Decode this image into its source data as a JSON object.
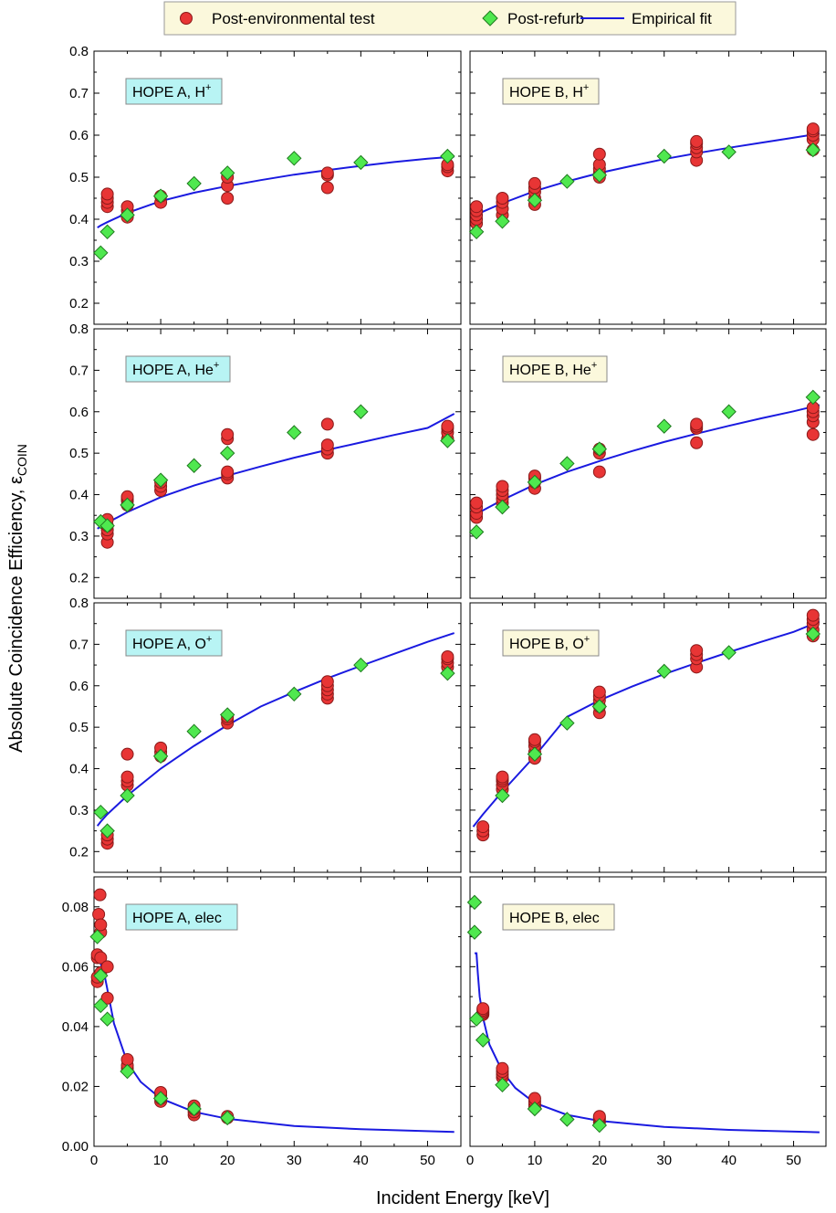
{
  "legend": {
    "items": [
      {
        "label": "Post-environmental test",
        "marker": "circle"
      },
      {
        "label": "Post-refurb",
        "marker": "diamond"
      },
      {
        "label": "Empirical fit",
        "marker": "line"
      }
    ]
  },
  "colors": {
    "post_env": "#e83535",
    "post_env_edge": "#8a1a1a",
    "post_refurb": "#4fe84f",
    "post_refurb_edge": "#1f7a1f",
    "fit": "#1a1ae0",
    "label_a_bg": "#b8f4f4",
    "label_b_bg": "#fbf8dc"
  },
  "axes": {
    "xlabel": "Incident Energy [keV]",
    "ylabel_main": "Absolute Coincidence Efficiency, ",
    "ylabel_symbol": "ε",
    "ylabel_sub": "COIN",
    "x_ticks": [
      "0",
      "10",
      "20",
      "30",
      "40",
      "50"
    ],
    "ion_y_ticks": [
      "0.2",
      "0.3",
      "0.4",
      "0.5",
      "0.6",
      "0.7",
      "0.8"
    ],
    "elec_y_ticks": [
      "0.00",
      "0.02",
      "0.04",
      "0.06",
      "0.08"
    ]
  },
  "chart_data": [
    {
      "type": "scatter",
      "label": "HOPE A, H",
      "label_sup": "+",
      "xlim": [
        0,
        55
      ],
      "ylim": [
        0.15,
        0.8
      ],
      "post_environmental": [
        [
          2,
          0.43
        ],
        [
          2,
          0.44
        ],
        [
          2,
          0.45
        ],
        [
          2,
          0.46
        ],
        [
          5,
          0.405
        ],
        [
          5,
          0.42
        ],
        [
          5,
          0.43
        ],
        [
          10,
          0.44
        ],
        [
          10,
          0.455
        ],
        [
          20,
          0.45
        ],
        [
          20,
          0.48
        ],
        [
          20,
          0.5
        ],
        [
          35,
          0.475
        ],
        [
          35,
          0.505
        ],
        [
          35,
          0.51
        ],
        [
          53,
          0.515
        ],
        [
          53,
          0.525
        ],
        [
          53,
          0.53
        ]
      ],
      "post_refurb": [
        [
          1,
          0.32
        ],
        [
          2,
          0.37
        ],
        [
          5,
          0.41
        ],
        [
          10,
          0.455
        ],
        [
          15,
          0.485
        ],
        [
          20,
          0.51
        ],
        [
          30,
          0.545
        ],
        [
          40,
          0.535
        ],
        [
          53,
          0.55
        ]
      ],
      "fit": {
        "x": [
          0.5,
          1,
          2,
          5,
          10,
          15,
          20,
          25,
          30,
          35,
          40,
          45,
          50,
          54
        ],
        "y": [
          0.38,
          0.385,
          0.393,
          0.415,
          0.443,
          0.463,
          0.479,
          0.493,
          0.506,
          0.517,
          0.527,
          0.536,
          0.544,
          0.549
        ]
      }
    },
    {
      "type": "scatter",
      "label": "HOPE B, H",
      "label_sup": "+",
      "xlim": [
        0,
        55
      ],
      "ylim": [
        0.15,
        0.8
      ],
      "post_environmental": [
        [
          1,
          0.39
        ],
        [
          1,
          0.4
        ],
        [
          1,
          0.41
        ],
        [
          1,
          0.42
        ],
        [
          1,
          0.43
        ],
        [
          5,
          0.41
        ],
        [
          5,
          0.425
        ],
        [
          5,
          0.44
        ],
        [
          5,
          0.45
        ],
        [
          10,
          0.435
        ],
        [
          10,
          0.45
        ],
        [
          10,
          0.465
        ],
        [
          10,
          0.475
        ],
        [
          10,
          0.485
        ],
        [
          20,
          0.5
        ],
        [
          20,
          0.51
        ],
        [
          20,
          0.52
        ],
        [
          20,
          0.53
        ],
        [
          20,
          0.555
        ],
        [
          35,
          0.54
        ],
        [
          35,
          0.56
        ],
        [
          35,
          0.57
        ],
        [
          35,
          0.58
        ],
        [
          35,
          0.585
        ],
        [
          53,
          0.565
        ],
        [
          53,
          0.59
        ],
        [
          53,
          0.6
        ],
        [
          53,
          0.61
        ],
        [
          53,
          0.615
        ]
      ],
      "post_refurb": [
        [
          1,
          0.37
        ],
        [
          5,
          0.395
        ],
        [
          10,
          0.445
        ],
        [
          15,
          0.49
        ],
        [
          20,
          0.505
        ],
        [
          30,
          0.55
        ],
        [
          40,
          0.56
        ],
        [
          53,
          0.565
        ]
      ],
      "fit": {
        "x": [
          0.5,
          1,
          2,
          5,
          10,
          15,
          20,
          25,
          30,
          35,
          40,
          45,
          50,
          54
        ],
        "y": [
          0.405,
          0.41,
          0.418,
          0.438,
          0.467,
          0.49,
          0.51,
          0.527,
          0.543,
          0.557,
          0.57,
          0.582,
          0.594,
          0.604
        ]
      }
    },
    {
      "type": "scatter",
      "label": "HOPE A, He",
      "label_sup": "+",
      "xlim": [
        0,
        55
      ],
      "ylim": [
        0.15,
        0.8
      ],
      "post_environmental": [
        [
          2,
          0.285
        ],
        [
          2,
          0.305
        ],
        [
          2,
          0.315
        ],
        [
          2,
          0.325
        ],
        [
          2,
          0.34
        ],
        [
          5,
          0.375
        ],
        [
          5,
          0.385
        ],
        [
          5,
          0.39
        ],
        [
          5,
          0.395
        ],
        [
          10,
          0.41
        ],
        [
          10,
          0.42
        ],
        [
          10,
          0.43
        ],
        [
          20,
          0.44
        ],
        [
          20,
          0.45
        ],
        [
          20,
          0.455
        ],
        [
          20,
          0.535
        ],
        [
          20,
          0.545
        ],
        [
          35,
          0.5
        ],
        [
          35,
          0.51
        ],
        [
          35,
          0.52
        ],
        [
          35,
          0.57
        ],
        [
          53,
          0.535
        ],
        [
          53,
          0.55
        ],
        [
          53,
          0.56
        ],
        [
          53,
          0.565
        ]
      ],
      "post_refurb": [
        [
          1,
          0.335
        ],
        [
          2,
          0.325
        ],
        [
          5,
          0.375
        ],
        [
          10,
          0.435
        ],
        [
          15,
          0.47
        ],
        [
          20,
          0.5
        ],
        [
          30,
          0.55
        ],
        [
          40,
          0.6
        ],
        [
          53,
          0.53
        ]
      ],
      "fit": {
        "x": [
          0.5,
          1,
          2,
          5,
          10,
          15,
          20,
          25,
          30,
          35,
          40,
          45,
          50,
          54
        ],
        "y": [
          0.318,
          0.323,
          0.332,
          0.358,
          0.394,
          0.422,
          0.446,
          0.468,
          0.489,
          0.508,
          0.526,
          0.544,
          0.561,
          0.595
        ]
      }
    },
    {
      "type": "scatter",
      "label": "HOPE B, He",
      "label_sup": "+",
      "xlim": [
        0,
        55
      ],
      "ylim": [
        0.15,
        0.8
      ],
      "post_environmental": [
        [
          1,
          0.345
        ],
        [
          1,
          0.355
        ],
        [
          1,
          0.37
        ],
        [
          1,
          0.38
        ],
        [
          5,
          0.38
        ],
        [
          5,
          0.39
        ],
        [
          5,
          0.4
        ],
        [
          5,
          0.41
        ],
        [
          5,
          0.42
        ],
        [
          10,
          0.415
        ],
        [
          10,
          0.43
        ],
        [
          10,
          0.44
        ],
        [
          10,
          0.445
        ],
        [
          20,
          0.455
        ],
        [
          20,
          0.5
        ],
        [
          20,
          0.51
        ],
        [
          35,
          0.525
        ],
        [
          35,
          0.56
        ],
        [
          35,
          0.565
        ],
        [
          35,
          0.57
        ],
        [
          53,
          0.545
        ],
        [
          53,
          0.575
        ],
        [
          53,
          0.59
        ],
        [
          53,
          0.6
        ],
        [
          53,
          0.61
        ]
      ],
      "post_refurb": [
        [
          1,
          0.31
        ],
        [
          5,
          0.37
        ],
        [
          10,
          0.43
        ],
        [
          15,
          0.475
        ],
        [
          20,
          0.51
        ],
        [
          30,
          0.565
        ],
        [
          40,
          0.6
        ],
        [
          53,
          0.635
        ]
      ],
      "fit": {
        "x": [
          0.5,
          1,
          2,
          5,
          10,
          15,
          20,
          25,
          30,
          35,
          40,
          45,
          50,
          54
        ],
        "y": [
          0.348,
          0.353,
          0.362,
          0.387,
          0.424,
          0.455,
          0.481,
          0.505,
          0.527,
          0.547,
          0.566,
          0.584,
          0.601,
          0.616
        ]
      }
    },
    {
      "type": "scatter",
      "label": "HOPE A, O",
      "label_sup": "+",
      "xlim": [
        0,
        55
      ],
      "ylim": [
        0.15,
        0.8
      ],
      "post_environmental": [
        [
          2,
          0.22
        ],
        [
          2,
          0.23
        ],
        [
          2,
          0.24
        ],
        [
          5,
          0.36
        ],
        [
          5,
          0.37
        ],
        [
          5,
          0.38
        ],
        [
          5,
          0.435
        ],
        [
          10,
          0.43
        ],
        [
          10,
          0.44
        ],
        [
          10,
          0.45
        ],
        [
          20,
          0.51
        ],
        [
          20,
          0.52
        ],
        [
          20,
          0.525
        ],
        [
          35,
          0.57
        ],
        [
          35,
          0.58
        ],
        [
          35,
          0.59
        ],
        [
          35,
          0.6
        ],
        [
          35,
          0.61
        ],
        [
          53,
          0.645
        ],
        [
          53,
          0.655
        ],
        [
          53,
          0.665
        ],
        [
          53,
          0.67
        ]
      ],
      "post_refurb": [
        [
          1,
          0.295
        ],
        [
          2,
          0.25
        ],
        [
          5,
          0.335
        ],
        [
          10,
          0.43
        ],
        [
          15,
          0.49
        ],
        [
          20,
          0.53
        ],
        [
          30,
          0.58
        ],
        [
          40,
          0.65
        ],
        [
          53,
          0.63
        ]
      ],
      "fit": {
        "x": [
          0.5,
          1,
          2,
          5,
          10,
          15,
          20,
          25,
          30,
          35,
          40,
          45,
          50,
          54
        ],
        "y": [
          0.262,
          0.272,
          0.29,
          0.335,
          0.4,
          0.455,
          0.505,
          0.55,
          0.585,
          0.618,
          0.648,
          0.677,
          0.706,
          0.727
        ]
      }
    },
    {
      "type": "scatter",
      "label": "HOPE B, O",
      "label_sup": "+",
      "xlim": [
        0,
        55
      ],
      "ylim": [
        0.15,
        0.8
      ],
      "post_environmental": [
        [
          2,
          0.24
        ],
        [
          2,
          0.25
        ],
        [
          2,
          0.26
        ],
        [
          5,
          0.35
        ],
        [
          5,
          0.36
        ],
        [
          5,
          0.37
        ],
        [
          5,
          0.375
        ],
        [
          5,
          0.38
        ],
        [
          10,
          0.425
        ],
        [
          10,
          0.44
        ],
        [
          10,
          0.455
        ],
        [
          10,
          0.465
        ],
        [
          10,
          0.47
        ],
        [
          20,
          0.535
        ],
        [
          20,
          0.55
        ],
        [
          20,
          0.565
        ],
        [
          20,
          0.575
        ],
        [
          20,
          0.585
        ],
        [
          35,
          0.645
        ],
        [
          35,
          0.665
        ],
        [
          35,
          0.675
        ],
        [
          35,
          0.685
        ],
        [
          53,
          0.72
        ],
        [
          53,
          0.735
        ],
        [
          53,
          0.75
        ],
        [
          53,
          0.76
        ],
        [
          53,
          0.77
        ]
      ],
      "post_refurb": [
        [
          5,
          0.335
        ],
        [
          10,
          0.435
        ],
        [
          15,
          0.51
        ],
        [
          20,
          0.55
        ],
        [
          30,
          0.635
        ],
        [
          40,
          0.68
        ],
        [
          53,
          0.725
        ]
      ],
      "fit": {
        "x": [
          0.5,
          1,
          2,
          5,
          10,
          15,
          20,
          25,
          30,
          35,
          40,
          45,
          50,
          54
        ],
        "y": [
          0.26,
          0.27,
          0.29,
          0.345,
          0.43,
          0.525,
          0.565,
          0.598,
          0.628,
          0.655,
          0.681,
          0.706,
          0.73,
          0.755
        ]
      }
    },
    {
      "type": "scatter",
      "label": "HOPE A, elec",
      "label_sup": "",
      "xlim": [
        0,
        55
      ],
      "ylim": [
        0,
        0.09
      ],
      "post_environmental": [
        [
          0.5,
          0.055
        ],
        [
          0.5,
          0.0565
        ],
        [
          0.5,
          0.063
        ],
        [
          0.5,
          0.064
        ],
        [
          0.7,
          0.0775
        ],
        [
          0.9,
          0.084
        ],
        [
          1,
          0.063
        ],
        [
          1,
          0.0715
        ],
        [
          1,
          0.074
        ],
        [
          1,
          0.058
        ],
        [
          2,
          0.06
        ],
        [
          2,
          0.0495
        ],
        [
          5,
          0.026
        ],
        [
          5,
          0.027
        ],
        [
          5,
          0.029
        ],
        [
          10,
          0.015
        ],
        [
          10,
          0.016
        ],
        [
          10,
          0.017
        ],
        [
          10,
          0.018
        ],
        [
          15,
          0.0105
        ],
        [
          15,
          0.0115
        ],
        [
          15,
          0.0125
        ],
        [
          15,
          0.0135
        ],
        [
          20,
          0.0095
        ],
        [
          20,
          0.01
        ]
      ],
      "post_refurb": [
        [
          0.5,
          0.07
        ],
        [
          1,
          0.057
        ],
        [
          1,
          0.047
        ],
        [
          2,
          0.0425
        ],
        [
          5,
          0.025
        ],
        [
          10,
          0.016
        ],
        [
          15,
          0.0125
        ],
        [
          20,
          0.0095
        ]
      ],
      "fit": {
        "x": [
          1,
          1.5,
          2,
          3,
          5,
          7,
          10,
          15,
          20,
          30,
          40,
          54
        ],
        "y": [
          0.061,
          0.058,
          0.0525,
          0.041,
          0.028,
          0.0215,
          0.016,
          0.0115,
          0.0092,
          0.0068,
          0.0057,
          0.0048
        ]
      }
    },
    {
      "type": "scatter",
      "label": "HOPE B, elec",
      "label_sup": "",
      "xlim": [
        0,
        55
      ],
      "ylim": [
        0,
        0.09
      ],
      "post_environmental": [
        [
          2,
          0.044
        ],
        [
          2,
          0.0445
        ],
        [
          2,
          0.045
        ],
        [
          2,
          0.0455
        ],
        [
          2,
          0.046
        ],
        [
          5,
          0.023
        ],
        [
          5,
          0.024
        ],
        [
          5,
          0.025
        ],
        [
          5,
          0.026
        ],
        [
          10,
          0.013
        ],
        [
          10,
          0.014
        ],
        [
          10,
          0.015
        ],
        [
          10,
          0.016
        ],
        [
          20,
          0.008
        ],
        [
          20,
          0.009
        ],
        [
          20,
          0.0095
        ],
        [
          20,
          0.01
        ]
      ],
      "post_refurb": [
        [
          0.7,
          0.0815
        ],
        [
          0.7,
          0.0715
        ],
        [
          1,
          0.0425
        ],
        [
          2,
          0.0355
        ],
        [
          5,
          0.0205
        ],
        [
          10,
          0.0125
        ],
        [
          15,
          0.009
        ],
        [
          20,
          0.007
        ]
      ],
      "fit": {
        "x": [
          0.7,
          1,
          1.2,
          1.5,
          2,
          3,
          5,
          7,
          10,
          15,
          20,
          30,
          40,
          54
        ],
        "y": [
          0.0645,
          0.0645,
          0.058,
          0.05,
          0.043,
          0.034,
          0.025,
          0.0195,
          0.0145,
          0.0105,
          0.0085,
          0.0065,
          0.0055,
          0.0047
        ]
      }
    }
  ]
}
